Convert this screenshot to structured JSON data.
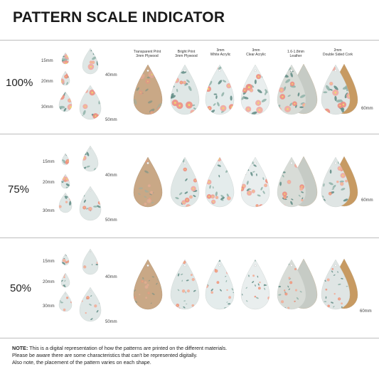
{
  "title": "PATTERN SCALE INDICATOR",
  "columns": [
    {
      "line1": "Transparent Print",
      "line2": "3mm Plywood",
      "material": "plywood"
    },
    {
      "line1": "Bright Print",
      "line2": "3mm Plywood",
      "material": "bright"
    },
    {
      "line1": "3mm",
      "line2": "White Acrylic",
      "material": "white"
    },
    {
      "line1": "3mm",
      "line2": "Clear Acrylic",
      "material": "clear"
    },
    {
      "line1": "1.6-1.8mm",
      "line2": "Leather",
      "material": "leather"
    },
    {
      "line1": "2mm",
      "line2": "Double Sided Cork",
      "material": "cork"
    }
  ],
  "sections": [
    {
      "scale": "100%",
      "sizes": [
        "15mm",
        "20mm",
        "30mm",
        "40mm",
        "50mm"
      ],
      "end_label": "60mm"
    },
    {
      "scale": "75%",
      "sizes": [
        "15mm",
        "20mm",
        "30mm",
        "40mm",
        "50mm"
      ],
      "end_label": "60mm"
    },
    {
      "scale": "50%",
      "sizes": [
        "15mm",
        "20mm",
        "30mm",
        "40mm",
        "50mm"
      ],
      "end_label": "60mm"
    }
  ],
  "note": {
    "label": "NOTE:",
    "line1": " This is a digital representation of how the patterns are printed on the different materials.",
    "line2": "Please be aware there are some characteristics that can't be represented digitally.",
    "line3": "Also note, the placement of the pattern varies on each shape."
  },
  "colors": {
    "plywood": "#c9a886",
    "bright": "#dfe7e6",
    "white": "#e4ecec",
    "clear": "#e9eeee",
    "leather": "#d8dcd7",
    "leather_back": "#c6cbc5",
    "cork": "#dfe5e4",
    "cork_back": "#c79a62",
    "flower_pink": "#f1a8a0",
    "flower_coral": "#ee8f82",
    "leaf": "#8fb1a8",
    "leaf_dark": "#5f8b84",
    "yellow": "#f3dc6a"
  }
}
